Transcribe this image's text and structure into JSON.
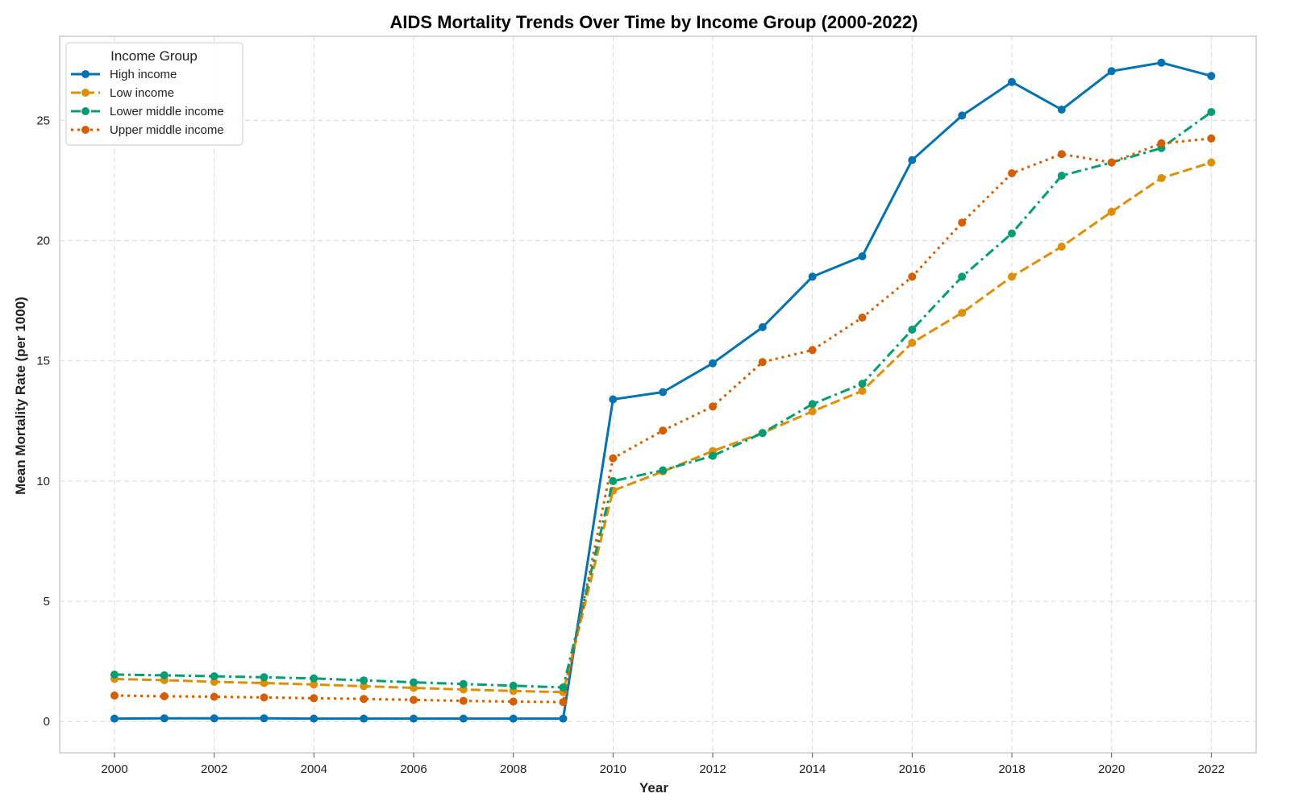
{
  "chart_data": {
    "type": "line",
    "title": "AIDS Mortality Trends Over Time by Income Group (2000-2022)",
    "xlabel": "Year",
    "ylabel": "Mean Mortality Rate (per 1000)",
    "xlim": [
      1998.9,
      2022.9
    ],
    "ylim": [
      -1.3,
      28.5
    ],
    "x_ticks": [
      2000,
      2002,
      2004,
      2006,
      2008,
      2010,
      2012,
      2014,
      2016,
      2018,
      2020,
      2022
    ],
    "y_ticks": [
      0,
      5,
      10,
      15,
      20,
      25
    ],
    "grid": true,
    "legend": {
      "title": "Income Group",
      "position": "top-left"
    },
    "x": [
      2000,
      2001,
      2002,
      2003,
      2004,
      2005,
      2006,
      2007,
      2008,
      2009,
      2010,
      2011,
      2012,
      2013,
      2014,
      2015,
      2016,
      2017,
      2018,
      2019,
      2020,
      2021,
      2022
    ],
    "series": [
      {
        "name": "High income",
        "color": "#0173b2",
        "style": "solid",
        "values": [
          0.12,
          0.13,
          0.13,
          0.13,
          0.12,
          0.12,
          0.12,
          0.12,
          0.12,
          0.12,
          13.4,
          13.7,
          14.9,
          16.4,
          18.5,
          19.35,
          23.35,
          25.2,
          26.6,
          25.45,
          27.05,
          27.4,
          26.85
        ]
      },
      {
        "name": "Low income",
        "color": "#de8f05",
        "style": "dashed",
        "values": [
          1.77,
          1.72,
          1.65,
          1.6,
          1.54,
          1.47,
          1.4,
          1.33,
          1.27,
          1.22,
          9.6,
          10.4,
          11.25,
          12.0,
          12.9,
          13.75,
          15.75,
          17.0,
          18.5,
          19.75,
          21.2,
          22.6,
          23.25
        ]
      },
      {
        "name": "Lower middle income",
        "color": "#029e73",
        "style": "dashdot",
        "values": [
          1.95,
          1.92,
          1.88,
          1.84,
          1.79,
          1.71,
          1.63,
          1.56,
          1.49,
          1.42,
          10.0,
          10.45,
          11.05,
          12.0,
          13.2,
          14.05,
          16.3,
          18.5,
          20.3,
          22.7,
          23.25,
          23.85,
          25.35
        ]
      },
      {
        "name": "Upper middle income",
        "color": "#d55e00",
        "style": "dotted",
        "values": [
          1.08,
          1.05,
          1.03,
          1.0,
          0.97,
          0.94,
          0.9,
          0.86,
          0.83,
          0.81,
          10.95,
          12.1,
          13.1,
          14.95,
          15.45,
          16.8,
          18.5,
          20.75,
          22.8,
          23.6,
          23.25,
          24.05,
          24.25
        ]
      }
    ]
  }
}
